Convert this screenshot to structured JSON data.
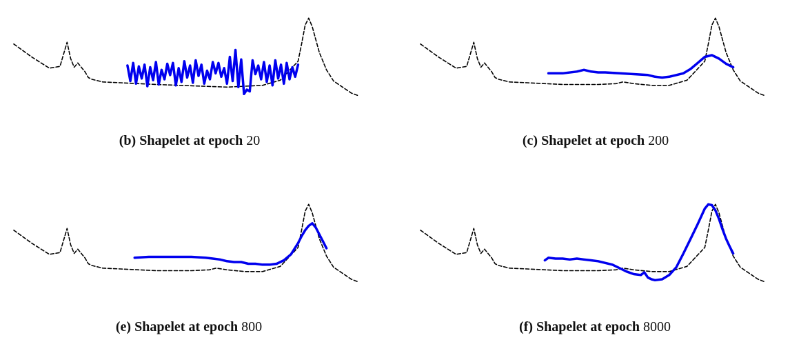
{
  "panels": [
    {
      "id": "b",
      "caption_prefix": "(b)",
      "caption_text": "Shapelet at epoch",
      "epoch": "20"
    },
    {
      "id": "c",
      "caption_prefix": "(c)",
      "caption_text": "Shapelet at epoch",
      "epoch": "200"
    },
    {
      "id": "e",
      "caption_prefix": "(e)",
      "caption_text": "Shapelet at epoch",
      "epoch": "800"
    },
    {
      "id": "f",
      "caption_prefix": "(f)",
      "caption_text": "Shapelet at epoch",
      "epoch": "8000"
    }
  ],
  "colors": {
    "series": "#000000",
    "shapelet": "#0000ee"
  },
  "chart_data": [
    {
      "type": "line",
      "panel": "b",
      "series": [
        {
          "style": "dashed",
          "x": [
            0,
            5,
            10,
            13,
            15,
            16,
            17,
            18,
            20,
            21,
            22,
            23,
            25,
            30,
            40,
            60,
            70,
            75,
            80,
            81,
            82,
            83,
            84,
            85,
            86,
            88,
            90,
            95,
            97
          ],
          "y": [
            0.55,
            0.4,
            0.27,
            0.29,
            0.57,
            0.38,
            0.28,
            0.33,
            0.23,
            0.16,
            0.14,
            0.13,
            0.11,
            0.1,
            0.08,
            0.05,
            0.07,
            0.13,
            0.35,
            0.55,
            0.77,
            0.85,
            0.75,
            0.6,
            0.45,
            0.25,
            0.12,
            -0.02,
            -0.05
          ]
        },
        {
          "style": "solid",
          "x": [
            32,
            32.8,
            33.6,
            34.4,
            35.2,
            36,
            36.8,
            37.6,
            38.4,
            39.2,
            40,
            40.8,
            41.6,
            42.4,
            43.2,
            44,
            44.8,
            45.6,
            46.4,
            47.2,
            48,
            48.8,
            49.6,
            50.4,
            51.2,
            52,
            52.8,
            53.6,
            54.4,
            55.2,
            56,
            56.8,
            57.6,
            58.4,
            59.2,
            60,
            60.8,
            61.6,
            62.4,
            63.2,
            64,
            64.8,
            65.6,
            66.4,
            67.2,
            68,
            68.8,
            69.6,
            70.4,
            71.2,
            72,
            72.8,
            73.6,
            74.4,
            75.2,
            76,
            76.8,
            77.6,
            78.4,
            79.2,
            80
          ],
          "y": [
            0.3,
            0.12,
            0.33,
            0.09,
            0.29,
            0.15,
            0.31,
            0.06,
            0.28,
            0.13,
            0.34,
            0.08,
            0.25,
            0.14,
            0.32,
            0.19,
            0.33,
            0.07,
            0.27,
            0.11,
            0.35,
            0.16,
            0.3,
            0.1,
            0.36,
            0.18,
            0.31,
            0.09,
            0.24,
            0.14,
            0.34,
            0.21,
            0.33,
            0.17,
            0.27,
            0.09,
            0.4,
            0.12,
            0.48,
            0.05,
            0.37,
            -0.03,
            0.02,
            0.0,
            0.36,
            0.2,
            0.3,
            0.14,
            0.34,
            0.11,
            0.3,
            0.07,
            0.36,
            0.15,
            0.31,
            0.09,
            0.33,
            0.14,
            0.28,
            0.17,
            0.31
          ]
        }
      ]
    },
    {
      "type": "line",
      "panel": "c",
      "series": [
        {
          "style": "dashed",
          "x": [
            0,
            5,
            10,
            13,
            15,
            16,
            17,
            18,
            20,
            21,
            22,
            23,
            25,
            30,
            40,
            50,
            55,
            57,
            60,
            65,
            70,
            75,
            80,
            81,
            82,
            83,
            84,
            85,
            86,
            88,
            90,
            95,
            97
          ],
          "y": [
            0.55,
            0.4,
            0.27,
            0.29,
            0.57,
            0.38,
            0.28,
            0.33,
            0.23,
            0.16,
            0.14,
            0.13,
            0.11,
            0.1,
            0.08,
            0.08,
            0.09,
            0.11,
            0.09,
            0.07,
            0.07,
            0.13,
            0.35,
            0.55,
            0.77,
            0.85,
            0.75,
            0.6,
            0.45,
            0.25,
            0.12,
            -0.02,
            -0.05
          ]
        },
        {
          "style": "solid",
          "x": [
            36,
            40,
            44,
            46,
            48,
            50,
            52,
            56,
            60,
            64,
            66,
            68,
            70,
            72,
            74,
            76,
            78,
            80,
            82,
            84,
            86,
            88
          ],
          "y": [
            0.21,
            0.21,
            0.23,
            0.25,
            0.23,
            0.22,
            0.22,
            0.21,
            0.2,
            0.19,
            0.17,
            0.16,
            0.17,
            0.19,
            0.21,
            0.26,
            0.33,
            0.4,
            0.42,
            0.38,
            0.32,
            0.28
          ]
        }
      ]
    },
    {
      "type": "line",
      "panel": "e",
      "series": [
        {
          "style": "dashed",
          "x": [
            0,
            5,
            10,
            13,
            15,
            16,
            17,
            18,
            20,
            21,
            22,
            23,
            25,
            30,
            40,
            50,
            55,
            57,
            60,
            65,
            70,
            75,
            80,
            81,
            82,
            83,
            84,
            85,
            86,
            88,
            90,
            95,
            97
          ],
          "y": [
            0.55,
            0.4,
            0.27,
            0.29,
            0.57,
            0.38,
            0.28,
            0.33,
            0.23,
            0.16,
            0.14,
            0.13,
            0.11,
            0.1,
            0.08,
            0.08,
            0.09,
            0.11,
            0.09,
            0.07,
            0.07,
            0.13,
            0.35,
            0.55,
            0.77,
            0.85,
            0.75,
            0.6,
            0.45,
            0.25,
            0.12,
            -0.02,
            -0.05
          ]
        },
        {
          "style": "solid",
          "x": [
            34,
            38,
            42,
            46,
            50,
            54,
            56,
            58,
            60,
            62,
            64,
            66,
            68,
            70,
            72,
            74,
            76,
            78,
            80,
            81,
            82,
            83,
            84,
            85,
            86,
            87,
            88
          ],
          "y": [
            0.23,
            0.24,
            0.24,
            0.24,
            0.24,
            0.23,
            0.22,
            0.21,
            0.19,
            0.18,
            0.18,
            0.16,
            0.16,
            0.15,
            0.15,
            0.16,
            0.2,
            0.27,
            0.4,
            0.48,
            0.55,
            0.6,
            0.63,
            0.58,
            0.5,
            0.42,
            0.34
          ]
        }
      ]
    },
    {
      "type": "line",
      "panel": "f",
      "series": [
        {
          "style": "dashed",
          "x": [
            0,
            5,
            10,
            13,
            15,
            16,
            17,
            18,
            20,
            21,
            22,
            23,
            25,
            30,
            40,
            50,
            55,
            57,
            60,
            65,
            70,
            75,
            80,
            81,
            82,
            83,
            84,
            85,
            86,
            88,
            90,
            95,
            97
          ],
          "y": [
            0.55,
            0.4,
            0.27,
            0.29,
            0.57,
            0.38,
            0.28,
            0.33,
            0.23,
            0.16,
            0.14,
            0.13,
            0.11,
            0.1,
            0.08,
            0.08,
            0.09,
            0.11,
            0.09,
            0.07,
            0.07,
            0.13,
            0.35,
            0.55,
            0.77,
            0.85,
            0.75,
            0.6,
            0.45,
            0.25,
            0.12,
            -0.02,
            -0.05
          ]
        },
        {
          "style": "solid",
          "x": [
            35,
            36,
            38,
            40,
            42,
            44,
            46,
            48,
            50,
            52,
            54,
            56,
            58,
            60,
            62,
            63,
            64,
            65,
            66,
            68,
            70,
            72,
            74,
            76,
            78,
            80,
            81,
            82,
            83,
            84,
            85,
            86,
            87,
            88
          ],
          "y": [
            0.2,
            0.23,
            0.22,
            0.22,
            0.21,
            0.22,
            0.21,
            0.2,
            0.19,
            0.17,
            0.15,
            0.11,
            0.07,
            0.04,
            0.03,
            0.06,
            0.0,
            -0.02,
            -0.03,
            -0.02,
            0.03,
            0.12,
            0.28,
            0.45,
            0.62,
            0.8,
            0.85,
            0.84,
            0.78,
            0.68,
            0.56,
            0.45,
            0.36,
            0.28
          ]
        }
      ]
    }
  ]
}
